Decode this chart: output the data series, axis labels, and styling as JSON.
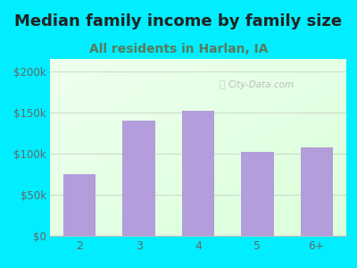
{
  "title": "Median family income by family size",
  "subtitle": "All residents in Harlan, IA",
  "categories": [
    "2",
    "3",
    "4",
    "5",
    "6+"
  ],
  "values": [
    75000,
    140000,
    152000,
    102000,
    107000
  ],
  "bar_color": "#b39ddb",
  "title_fontsize": 13,
  "subtitle_fontsize": 10,
  "subtitle_color": "#5a7a5a",
  "title_color": "#222222",
  "yticks": [
    0,
    50000,
    100000,
    150000,
    200000
  ],
  "ytick_labels": [
    "$0",
    "$50k",
    "$100k",
    "$150k",
    "$200k"
  ],
  "ylim": [
    0,
    215000
  ],
  "bg_outer": "#00eeff",
  "bg_plot_grad_top_left": "#d4edda",
  "bg_plot_bottom_right": "#ffffff",
  "watermark": "City-Data.com",
  "tick_color": "#666666",
  "grid_color": "#bbbbbb",
  "axis_bottom_color": "#00eeff"
}
